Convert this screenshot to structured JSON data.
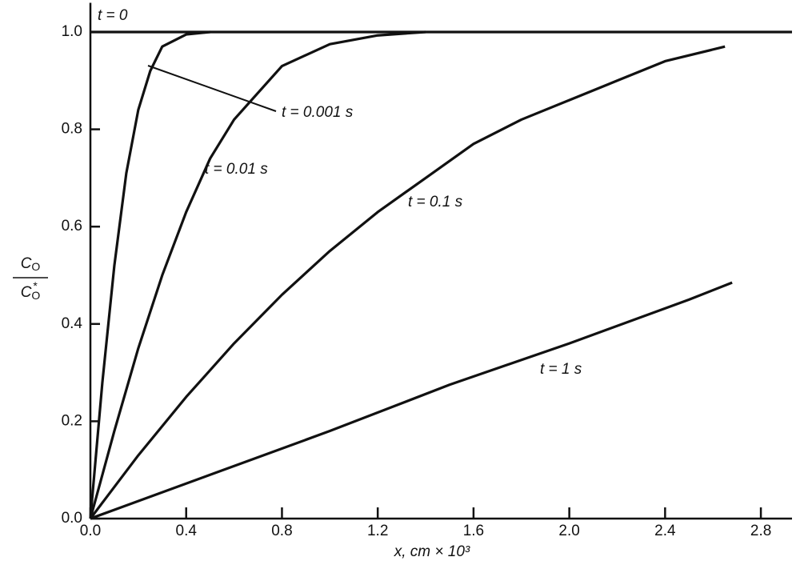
{
  "chart_data": {
    "type": "line",
    "x_label": "x, cm × 10³",
    "y_label": {
      "numerator": [
        "C",
        "O"
      ],
      "denominator": [
        "C",
        "O",
        "*"
      ]
    },
    "xlim": [
      0,
      2.93
    ],
    "ylim": [
      0,
      1.06
    ],
    "xticks": [
      {
        "value": 0,
        "label": "0.0"
      },
      0.4,
      0.8,
      1.2,
      1.6,
      {
        "value": 2,
        "label": "2.0"
      },
      2.4,
      2.8
    ],
    "yticks": [
      {
        "value": 0,
        "label": "0.0"
      },
      0.2,
      0.4,
      0.6,
      0.8,
      {
        "value": 1,
        "label": "1.0"
      }
    ],
    "grid": false,
    "series": [
      {
        "name": "t = 0",
        "color": "#111111",
        "x": [
          0,
          2.93
        ],
        "values": [
          1,
          1
        ]
      },
      {
        "name": "t = 0.001 s",
        "color": "#111111",
        "x": [
          0,
          0.05,
          0.1,
          0.15,
          0.2,
          0.25,
          0.3,
          0.4,
          0.5
        ],
        "values": [
          0,
          0.28,
          0.52,
          0.71,
          0.84,
          0.92,
          0.97,
          0.995,
          1
        ]
      },
      {
        "name": "t = 0.01 s",
        "color": "#111111",
        "x": [
          0,
          0.1,
          0.2,
          0.3,
          0.4,
          0.5,
          0.6,
          0.8,
          1.0,
          1.2,
          1.4
        ],
        "values": [
          0,
          0.18,
          0.35,
          0.5,
          0.63,
          0.74,
          0.82,
          0.93,
          0.975,
          0.993,
          1
        ]
      },
      {
        "name": "t = 0.1 s",
        "color": "#111111",
        "x": [
          0,
          0.2,
          0.4,
          0.6,
          0.8,
          1.0,
          1.2,
          1.4,
          1.6,
          1.8,
          2.0,
          2.2,
          2.4,
          2.65
        ],
        "values": [
          0,
          0.13,
          0.25,
          0.36,
          0.46,
          0.55,
          0.63,
          0.7,
          0.77,
          0.82,
          0.86,
          0.9,
          0.94,
          0.97
        ]
      },
      {
        "name": "t = 1 s",
        "color": "#111111",
        "x": [
          0,
          0.5,
          1.0,
          1.5,
          2.0,
          2.5,
          2.68
        ],
        "values": [
          0,
          0.09,
          0.18,
          0.275,
          0.36,
          0.45,
          0.485
        ]
      }
    ]
  }
}
